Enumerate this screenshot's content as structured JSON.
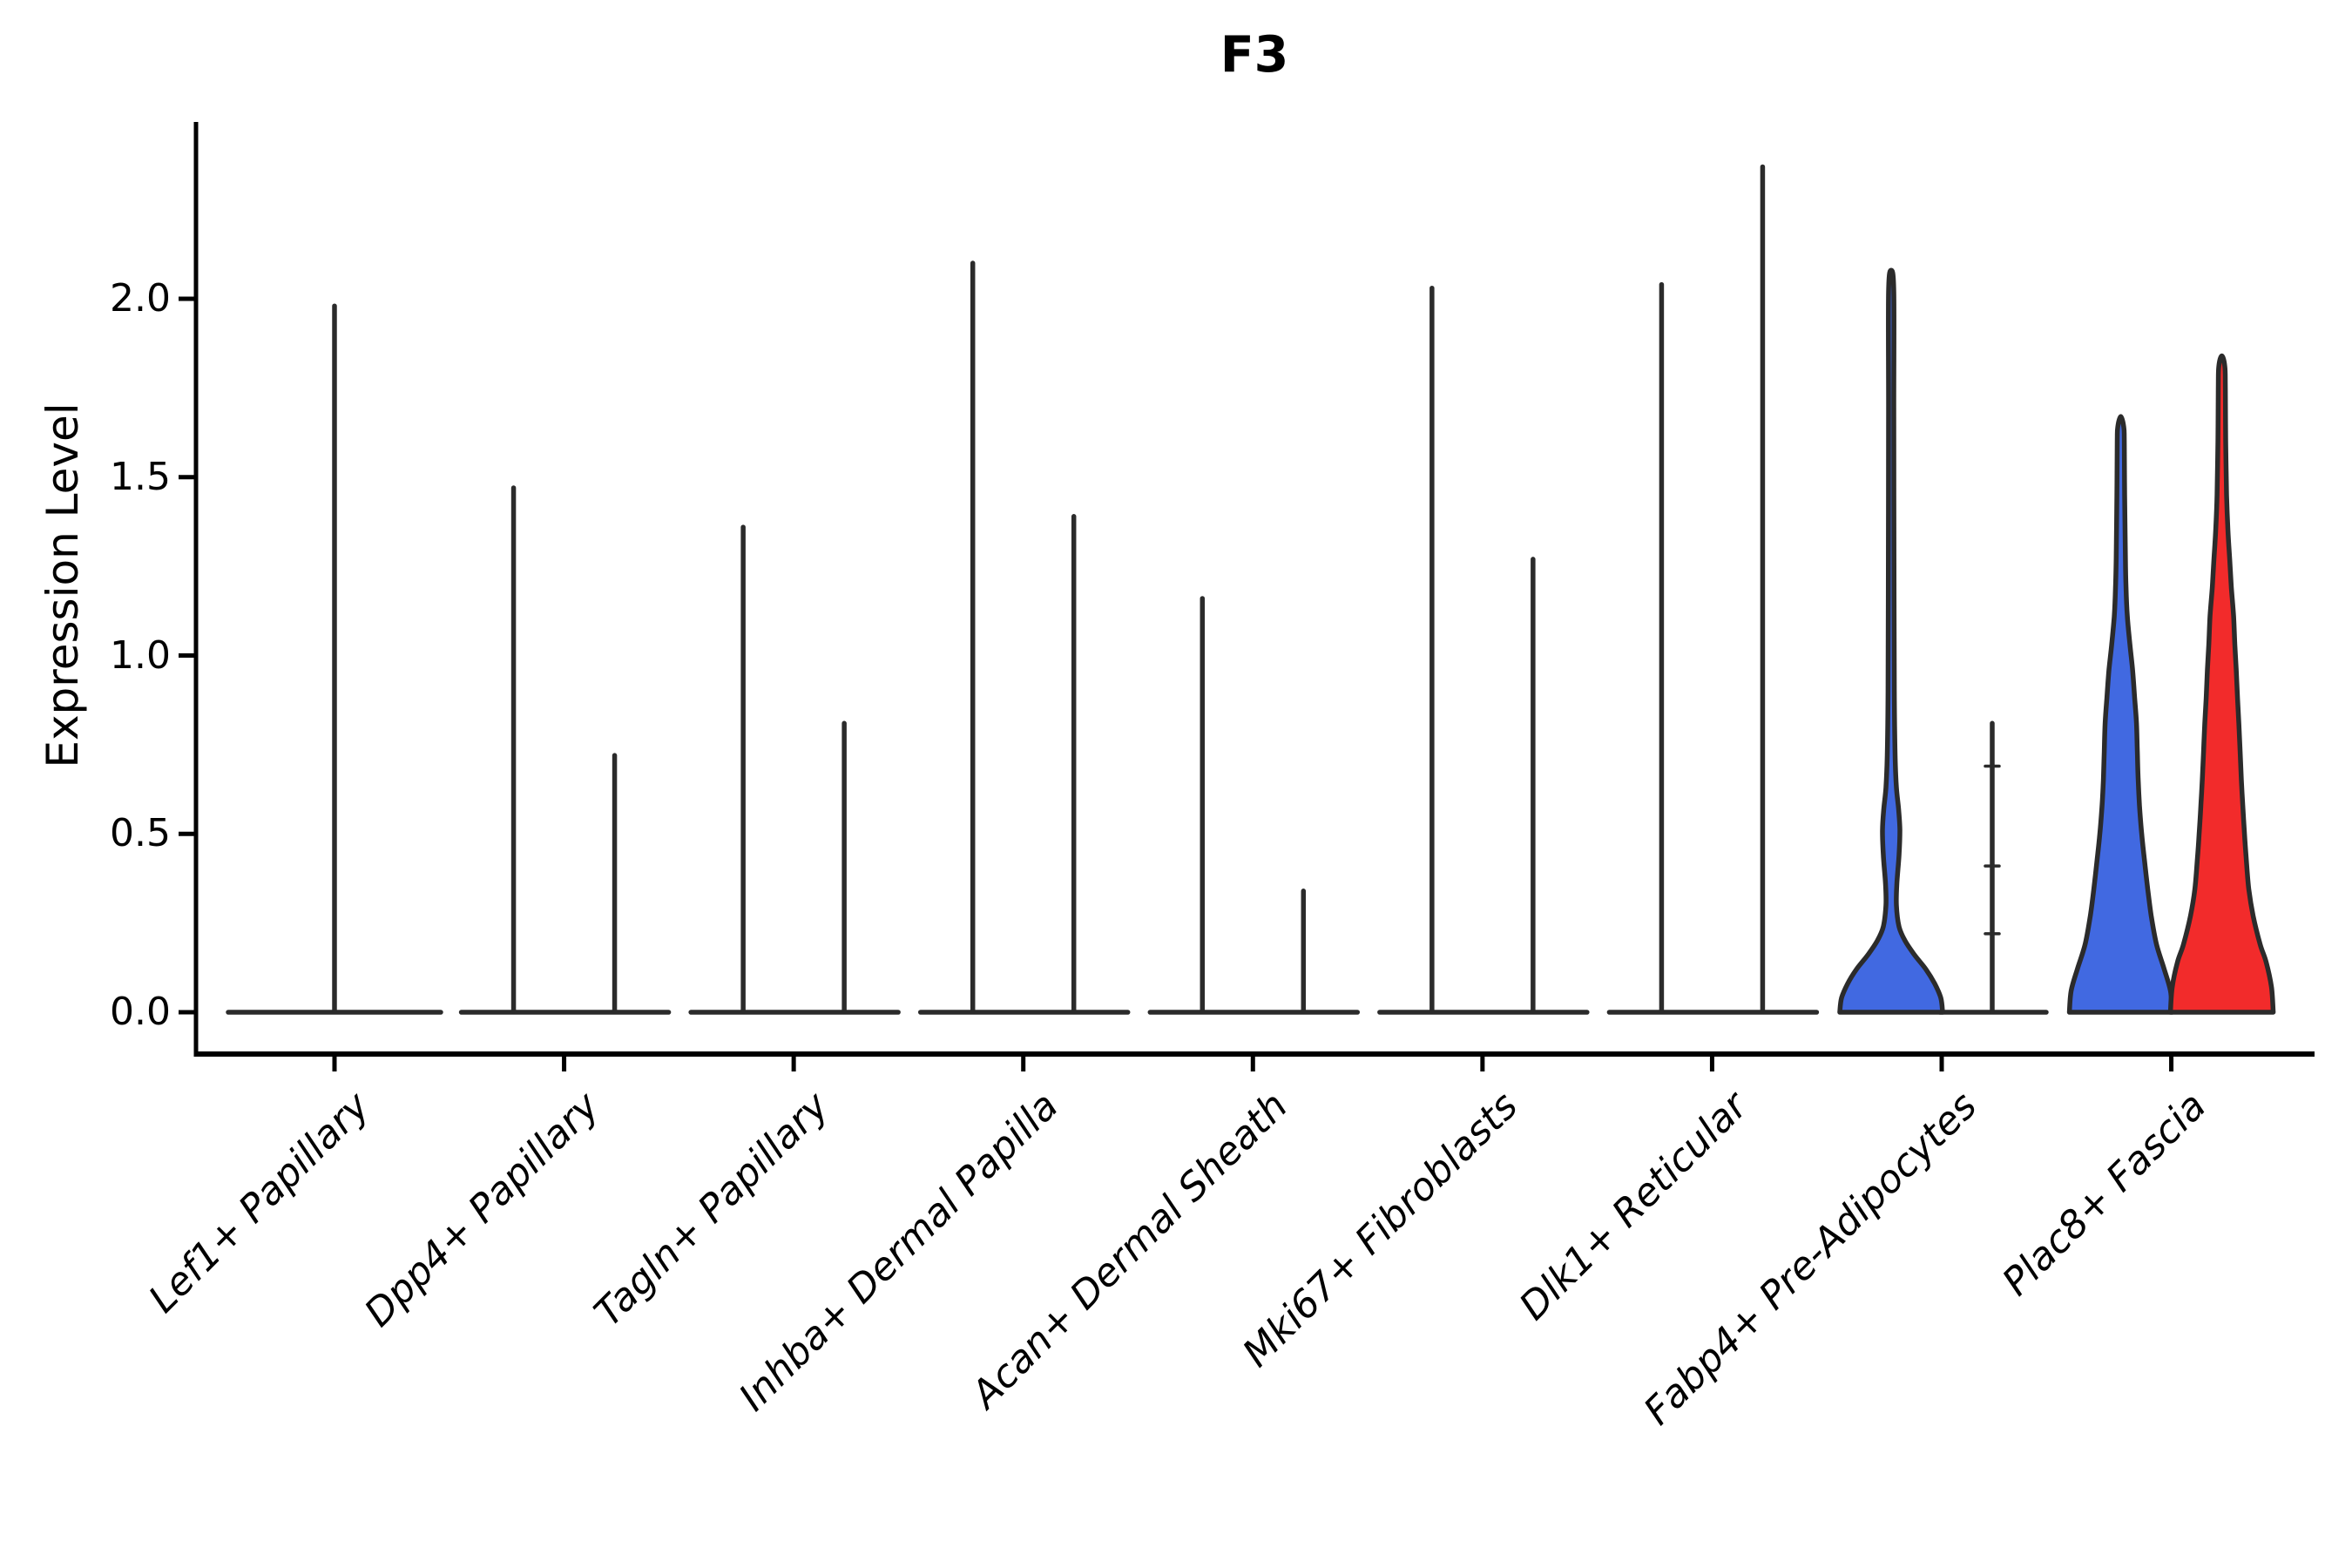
{
  "title": "F3",
  "y_axis": {
    "label": "Expression Level",
    "tick_labels": [
      "0.0",
      "0.5",
      "1.0",
      "1.5",
      "2.0"
    ],
    "tick_values": [
      0.0,
      0.5,
      1.0,
      1.5,
      2.0
    ]
  },
  "x_axis": {
    "categories": [
      "Lef1+ Papillary",
      "Dpp4+ Papillary",
      "Tagln+ Papillary",
      "Inhba+ Dermal Papilla",
      "Acan+ Dermal Sheath",
      "Mki67+ Fibroblasts",
      "Dlk1+ Reticular",
      "Fabp4+ Pre-Adipocytes",
      "Plac8+ Fascia"
    ]
  },
  "colors": {
    "blue_fill": "#4169E1",
    "red_fill": "#F22B2B",
    "violin_outline": "#2B2B2B",
    "axis": "#000000",
    "text": "#000000"
  },
  "chart_data": {
    "type": "violin",
    "title": "F3",
    "ylabel": "Expression Level",
    "ylim": [
      -0.12,
      2.5
    ],
    "yticks": [
      0.0,
      0.5,
      1.0,
      1.5,
      2.0
    ],
    "grid": false,
    "legend": "none",
    "categories": [
      "Lef1+ Papillary",
      "Dpp4+ Papillary",
      "Tagln+ Papillary",
      "Inhba+ Dermal Papilla",
      "Acan+ Dermal Sheath",
      "Mki67+ Fibroblasts",
      "Dlk1+ Reticular",
      "Fabp4+ Pre-Adipocytes",
      "Plac8+ Fascia"
    ],
    "violins": [
      {
        "category": "Lef1+ Papillary",
        "position": "center",
        "fill": "none",
        "max_expression": 1.98,
        "bulk_at_zero": true
      },
      {
        "category": "Dpp4+ Papillary",
        "position": "left",
        "fill": "none",
        "max_expression": 1.47,
        "bulk_at_zero": true
      },
      {
        "category": "Dpp4+ Papillary",
        "position": "right",
        "fill": "none",
        "max_expression": 0.72,
        "bulk_at_zero": true
      },
      {
        "category": "Tagln+ Papillary",
        "position": "left",
        "fill": "none",
        "max_expression": 1.36,
        "bulk_at_zero": true
      },
      {
        "category": "Tagln+ Papillary",
        "position": "right",
        "fill": "none",
        "max_expression": 0.81,
        "bulk_at_zero": true
      },
      {
        "category": "Inhba+ Dermal Papilla",
        "position": "left",
        "fill": "none",
        "max_expression": 2.1,
        "bulk_at_zero": true
      },
      {
        "category": "Inhba+ Dermal Papilla",
        "position": "right",
        "fill": "none",
        "max_expression": 1.39,
        "bulk_at_zero": true
      },
      {
        "category": "Acan+ Dermal Sheath",
        "position": "left",
        "fill": "none",
        "max_expression": 1.16,
        "bulk_at_zero": true
      },
      {
        "category": "Acan+ Dermal Sheath",
        "position": "right",
        "fill": "none",
        "max_expression": 0.34,
        "bulk_at_zero": true
      },
      {
        "category": "Mki67+ Fibroblasts",
        "position": "left",
        "fill": "none",
        "max_expression": 2.03,
        "bulk_at_zero": true
      },
      {
        "category": "Mki67+ Fibroblasts",
        "position": "right",
        "fill": "none",
        "max_expression": 1.27,
        "bulk_at_zero": true
      },
      {
        "category": "Dlk1+ Reticular",
        "position": "left",
        "fill": "none",
        "max_expression": 2.04,
        "bulk_at_zero": true
      },
      {
        "category": "Dlk1+ Reticular",
        "position": "right",
        "fill": "none",
        "max_expression": 2.37,
        "bulk_at_zero": true
      },
      {
        "category": "Fabp4+ Pre-Adipocytes",
        "position": "left",
        "fill": "blue",
        "max_expression": 2.08,
        "density_profile": [
          [
            0,
            1
          ],
          [
            0.04,
            0.966
          ],
          [
            0.08,
            0.847
          ],
          [
            0.12,
            0.678
          ],
          [
            0.16,
            0.458
          ],
          [
            0.2,
            0.271
          ],
          [
            0.24,
            0.153
          ],
          [
            0.3,
            0.102
          ],
          [
            0.36,
            0.11
          ],
          [
            0.44,
            0.153
          ],
          [
            0.51,
            0.169
          ],
          [
            0.57,
            0.144
          ],
          [
            0.63,
            0.102
          ],
          [
            0.72,
            0.076
          ],
          [
            0.9,
            0.061
          ],
          [
            1.3,
            0.054
          ],
          [
            1.7,
            0.051
          ],
          [
            2.02,
            0.051
          ],
          [
            2.08,
            0
          ]
        ]
      },
      {
        "category": "Fabp4+ Pre-Adipocytes",
        "position": "right",
        "fill": "none",
        "max_expression": 0.81,
        "bulk_at_zero": true,
        "tick_marks": [
          0.69,
          0.41,
          0.22
        ]
      },
      {
        "category": "Plac8+ Fascia",
        "position": "left",
        "fill": "blue",
        "max_expression": 1.67,
        "density_profile": [
          [
            0,
            1
          ],
          [
            0.06,
            0.966
          ],
          [
            0.12,
            0.847
          ],
          [
            0.19,
            0.695
          ],
          [
            0.27,
            0.593
          ],
          [
            0.345,
            0.525
          ],
          [
            0.43,
            0.458
          ],
          [
            0.5,
            0.407
          ],
          [
            0.58,
            0.364
          ],
          [
            0.65,
            0.339
          ],
          [
            0.73,
            0.322
          ],
          [
            0.81,
            0.305
          ],
          [
            0.88,
            0.271
          ],
          [
            0.96,
            0.229
          ],
          [
            1.03,
            0.178
          ],
          [
            1.11,
            0.127
          ],
          [
            1.19,
            0.102
          ],
          [
            1.27,
            0.09
          ],
          [
            1.45,
            0.076
          ],
          [
            1.6,
            0.068
          ],
          [
            1.64,
            0.059
          ],
          [
            1.67,
            0
          ]
        ]
      },
      {
        "category": "Plac8+ Fascia",
        "position": "right",
        "fill": "red",
        "max_expression": 1.84,
        "density_profile": [
          [
            0,
            1
          ],
          [
            0.07,
            0.966
          ],
          [
            0.14,
            0.864
          ],
          [
            0.19,
            0.746
          ],
          [
            0.27,
            0.61
          ],
          [
            0.345,
            0.525
          ],
          [
            0.43,
            0.475
          ],
          [
            0.5,
            0.441
          ],
          [
            0.58,
            0.407
          ],
          [
            0.65,
            0.381
          ],
          [
            0.73,
            0.356
          ],
          [
            0.81,
            0.331
          ],
          [
            0.88,
            0.305
          ],
          [
            0.96,
            0.28
          ],
          [
            1.03,
            0.254
          ],
          [
            1.11,
            0.229
          ],
          [
            1.19,
            0.186
          ],
          [
            1.27,
            0.153
          ],
          [
            1.35,
            0.119
          ],
          [
            1.45,
            0.093
          ],
          [
            1.6,
            0.076
          ],
          [
            1.75,
            0.068
          ],
          [
            1.81,
            0.059
          ],
          [
            1.84,
            0
          ]
        ]
      }
    ]
  }
}
